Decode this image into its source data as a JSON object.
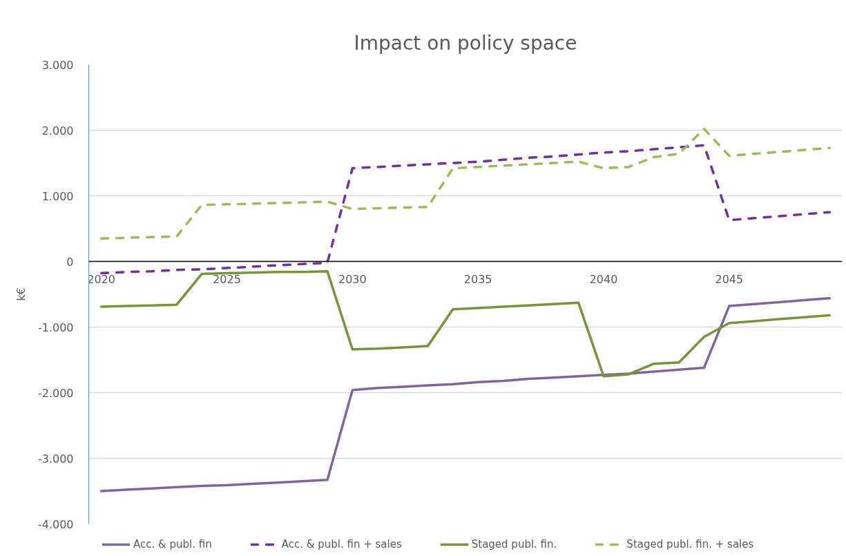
{
  "chart_data": {
    "type": "line",
    "title": "Impact on policy space",
    "ylabel": "k€",
    "x": [
      2020,
      2021,
      2022,
      2023,
      2024,
      2025,
      2026,
      2027,
      2028,
      2029,
      2030,
      2031,
      2032,
      2033,
      2034,
      2035,
      2036,
      2037,
      2038,
      2039,
      2040,
      2041,
      2042,
      2043,
      2044,
      2045,
      2046,
      2047,
      2048,
      2049
    ],
    "xlim": [
      2019.5,
      2049.5
    ],
    "xticks": [
      2020,
      2025,
      2030,
      2035,
      2040,
      2045
    ],
    "ylim": [
      -4000,
      3000
    ],
    "yticks": [
      {
        "value": -4000,
        "label": "-4.000"
      },
      {
        "value": -3000,
        "label": "-3.000"
      },
      {
        "value": -2000,
        "label": "-2.000"
      },
      {
        "value": -1000,
        "label": "-1.000"
      },
      0,
      {
        "value": 1000,
        "label": "1.000"
      },
      {
        "value": 2000,
        "label": "2.000"
      },
      {
        "value": 3000,
        "label": "3.000"
      }
    ],
    "grid": "y",
    "legend": "bottom",
    "series": [
      {
        "name": "Acc. & publ. fin",
        "color": "#8064a2",
        "line_style": "solid",
        "values": [
          -3500,
          -3480,
          -3460,
          -3440,
          -3420,
          -3410,
          -3390,
          -3370,
          -3350,
          -3330,
          -1960,
          -1930,
          -1910,
          -1890,
          -1870,
          -1840,
          -1820,
          -1790,
          -1770,
          -1750,
          -1730,
          -1710,
          -1680,
          -1650,
          -1620,
          -680,
          -650,
          -620,
          -590,
          -560
        ]
      },
      {
        "name": "Acc. & publ. fin + sales",
        "color": "#7030a0",
        "line_style": "dashed",
        "values": [
          -180,
          -160,
          -150,
          -130,
          -120,
          -100,
          -80,
          -60,
          -40,
          -20,
          1420,
          1440,
          1460,
          1480,
          1500,
          1520,
          1550,
          1580,
          1600,
          1630,
          1660,
          1680,
          1710,
          1740,
          1770,
          630,
          660,
          690,
          720,
          750
        ]
      },
      {
        "name": "Staged publ. fin.",
        "color": "#77933c",
        "line_style": "solid",
        "values": [
          -690,
          -680,
          -670,
          -660,
          -190,
          -180,
          -170,
          -160,
          -160,
          -150,
          -1340,
          -1330,
          -1310,
          -1290,
          -730,
          -710,
          -690,
          -670,
          -650,
          -630,
          -1750,
          -1720,
          -1560,
          -1540,
          -1150,
          -940,
          -910,
          -880,
          -850,
          -820
        ]
      },
      {
        "name": "Staged publ. fin. + sales",
        "color": "#9bbb59",
        "line_style": "dashed",
        "values": [
          350,
          360,
          370,
          380,
          860,
          870,
          880,
          890,
          900,
          910,
          800,
          810,
          820,
          830,
          1420,
          1440,
          1460,
          1480,
          1500,
          1520,
          1420,
          1440,
          1590,
          1640,
          2020,
          1610,
          1640,
          1670,
          1700,
          1730
        ]
      }
    ]
  }
}
